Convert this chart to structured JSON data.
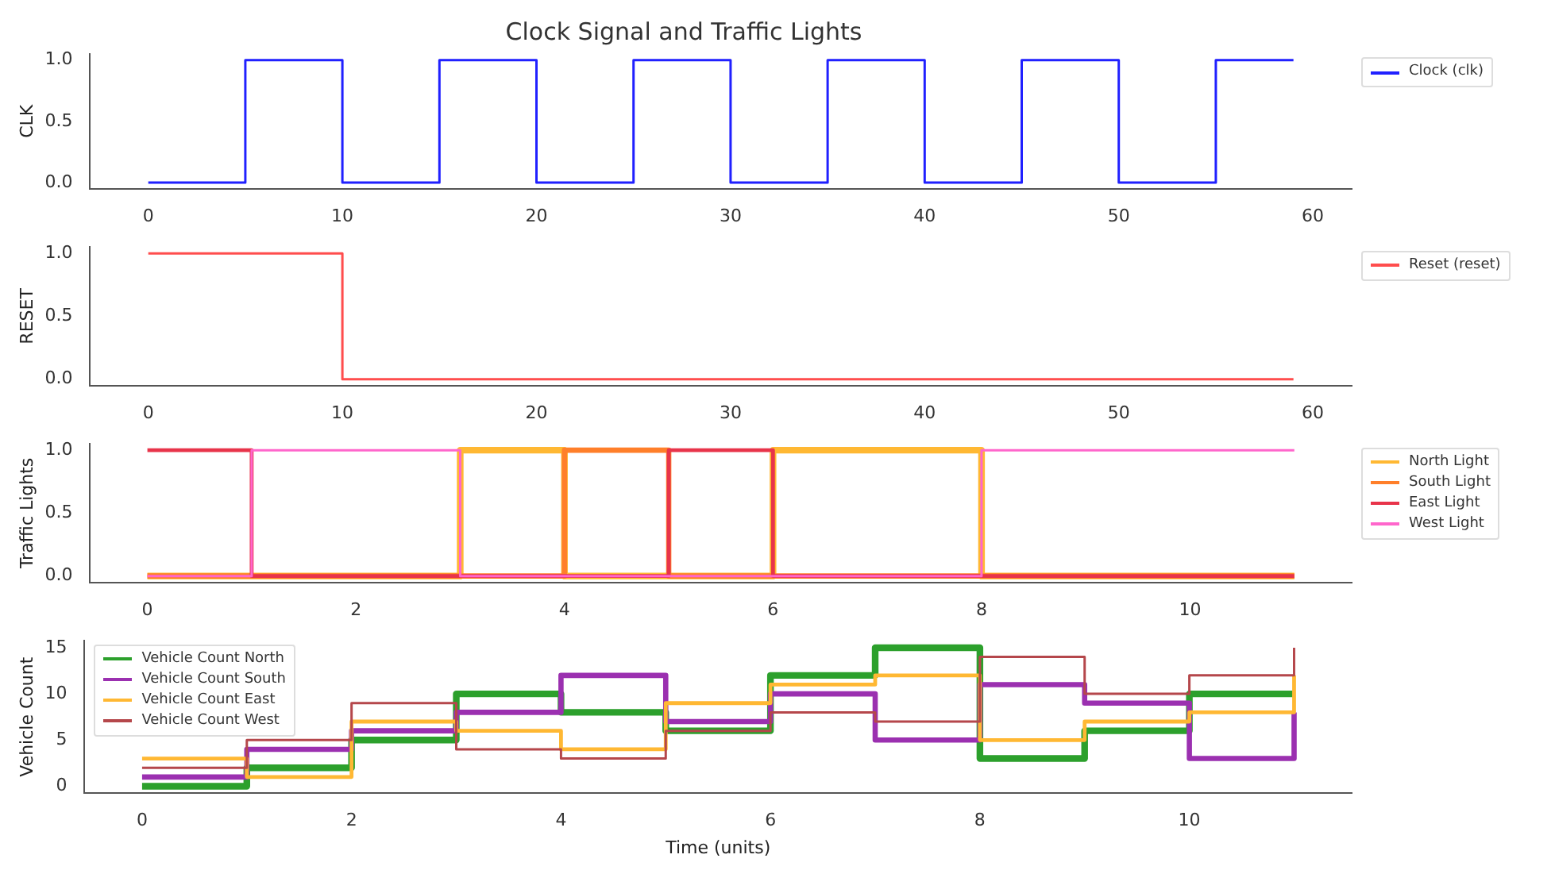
{
  "chart_data": [
    {
      "type": "step",
      "title": "Clock Signal and Traffic Lights",
      "ylabel": "CLK",
      "xlim": [
        -3,
        62
      ],
      "xticks": [
        0,
        10,
        20,
        30,
        40,
        50,
        60
      ],
      "ylim": [
        -0.05,
        1.05
      ],
      "yticks": [
        {
          "value": 0,
          "label": "0.0"
        },
        {
          "value": 0.5,
          "label": "0.5"
        },
        {
          "value": 1,
          "label": "1.0"
        }
      ],
      "grid": false,
      "legend": "top right",
      "series": [
        {
          "name": "Clock (clk)",
          "color": "#2020ff",
          "x": [
            0,
            5,
            10,
            15,
            20,
            25,
            30,
            35,
            40,
            45,
            50,
            55,
            59
          ],
          "values": [
            0,
            1,
            0,
            1,
            0,
            1,
            0,
            1,
            0,
            1,
            0,
            1,
            1
          ]
        }
      ]
    },
    {
      "type": "step",
      "ylabel": "RESET",
      "xlim": [
        -3,
        62
      ],
      "xticks": [
        0,
        10,
        20,
        30,
        40,
        50,
        60
      ],
      "ylim": [
        -0.05,
        1.05
      ],
      "yticks": [
        {
          "value": 0,
          "label": "0.0"
        },
        {
          "value": 0.5,
          "label": "0.5"
        },
        {
          "value": 1,
          "label": "1.0"
        }
      ],
      "grid": false,
      "legend": "top right",
      "series": [
        {
          "name": "Reset (reset)",
          "color": "#ff4d4d",
          "x": [
            0,
            10,
            59
          ],
          "values": [
            1,
            0,
            0
          ]
        }
      ]
    },
    {
      "type": "step",
      "ylabel": "Traffic Lights",
      "xlim": [
        -0.55,
        11.55
      ],
      "xticks": [
        0,
        2,
        4,
        6,
        8,
        10
      ],
      "ylim": [
        -0.05,
        1.05
      ],
      "yticks": [
        {
          "value": 0,
          "label": "0.0"
        },
        {
          "value": 0.5,
          "label": "0.5"
        },
        {
          "value": 1,
          "label": "1.0"
        }
      ],
      "grid": false,
      "legend": "top right",
      "series": [
        {
          "name": "North Light",
          "color": "#ffb833",
          "x": [
            0,
            1,
            2,
            3,
            4,
            5,
            6,
            7,
            8,
            9,
            10,
            11
          ],
          "values": [
            0,
            0,
            0,
            1,
            0,
            0,
            1,
            1,
            0,
            0,
            0,
            0
          ]
        },
        {
          "name": "South Light",
          "color": "#ff7f2a",
          "x": [
            0,
            1,
            2,
            3,
            4,
            5,
            6,
            7,
            8,
            9,
            10,
            11
          ],
          "values": [
            0,
            0,
            0,
            0,
            1,
            0,
            0,
            0,
            0,
            0,
            0,
            0
          ]
        },
        {
          "name": "East Light",
          "color": "#e8344a",
          "x": [
            0,
            1,
            2,
            3,
            4,
            5,
            6,
            7,
            8,
            9,
            10,
            11
          ],
          "values": [
            1,
            0,
            0,
            0,
            0,
            1,
            0,
            0,
            0,
            0,
            0,
            0
          ]
        },
        {
          "name": "West Light",
          "color": "#ff66cc",
          "x": [
            0,
            1,
            2,
            3,
            4,
            5,
            6,
            7,
            8,
            9,
            10,
            11
          ],
          "values": [
            0,
            1,
            1,
            0,
            0,
            0,
            0,
            0,
            1,
            1,
            1,
            1
          ]
        }
      ]
    },
    {
      "type": "step",
      "xlabel": "Time (units)",
      "ylabel": "Vehicle Count",
      "xlim": [
        -0.55,
        11.55
      ],
      "xticks": [
        0,
        2,
        4,
        6,
        8,
        10
      ],
      "ylim": [
        -0.75,
        15.75
      ],
      "yticks": [
        0,
        5,
        10,
        15
      ],
      "grid": false,
      "legend": "top left",
      "series": [
        {
          "name": "Vehicle Count North",
          "color": "#2ca02c",
          "x": [
            0,
            1,
            2,
            3,
            4,
            5,
            6,
            7,
            8,
            9,
            10,
            11
          ],
          "values": [
            0,
            2,
            5,
            10,
            8,
            6,
            12,
            15,
            3,
            6,
            10,
            10
          ]
        },
        {
          "name": "Vehicle Count South",
          "color": "#9b30b0",
          "x": [
            0,
            1,
            2,
            3,
            4,
            5,
            6,
            7,
            8,
            9,
            10,
            11
          ],
          "values": [
            1,
            4,
            6,
            8,
            12,
            7,
            10,
            5,
            11,
            9,
            3,
            8
          ]
        },
        {
          "name": "Vehicle Count East",
          "color": "#ffb833",
          "x": [
            0,
            1,
            2,
            3,
            4,
            5,
            6,
            7,
            8,
            9,
            10,
            11
          ],
          "values": [
            3,
            1,
            7,
            6,
            4,
            9,
            11,
            12,
            5,
            7,
            8,
            12
          ]
        },
        {
          "name": "Vehicle Count West",
          "color": "#b5474b",
          "x": [
            0,
            1,
            2,
            3,
            4,
            5,
            6,
            7,
            8,
            9,
            10,
            11
          ],
          "values": [
            2,
            5,
            9,
            4,
            3,
            6,
            8,
            7,
            14,
            10,
            12,
            15
          ]
        }
      ]
    }
  ]
}
